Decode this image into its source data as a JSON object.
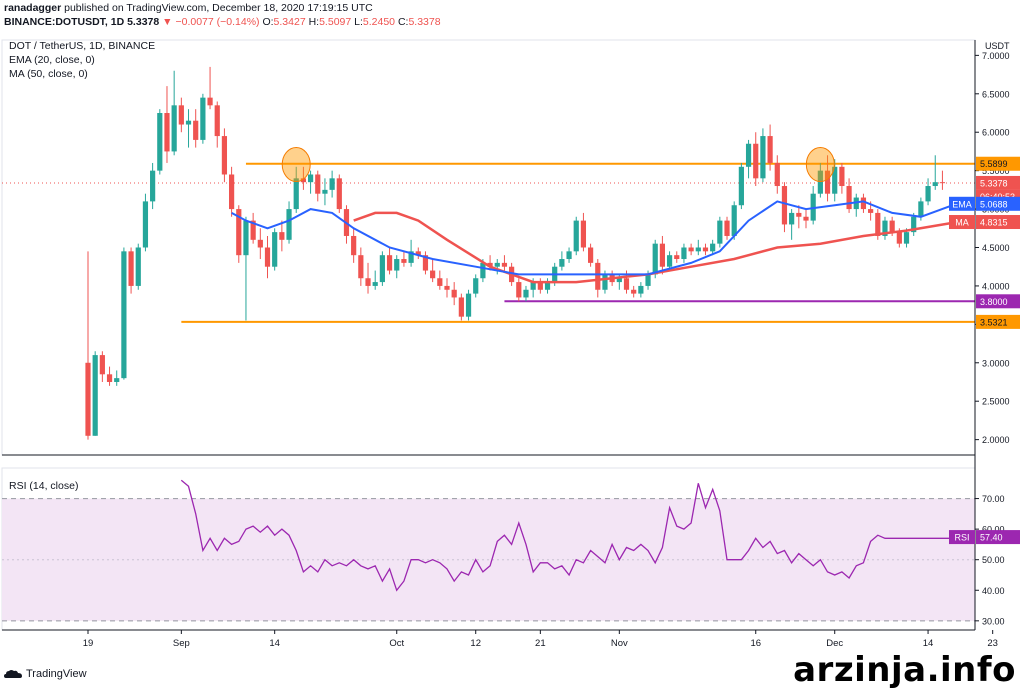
{
  "header": {
    "author": "ranadagger",
    "published_text": "published on TradingView.com, December 18, 2020 17:19:15 UTC",
    "symbol": "BINANCE:DOTUSDT, 1D",
    "price": "5.3378",
    "change_arrow": "▼",
    "change": "−0.0077 (−0.14%)",
    "o_label": "O:",
    "o_value": "5.3427",
    "h_label": "H:",
    "h_value": "5.5097",
    "l_label": "L:",
    "l_value": "5.2450",
    "c_label": "C:",
    "c_value": "5.3378"
  },
  "legend": {
    "title": "DOT / TetherUS, 1D, BINANCE",
    "ema": "EMA (20, close, 0)",
    "ma": "MA (50, close, 0)"
  },
  "rsi_legend": "RSI (14, close)",
  "branding": "TradingView",
  "watermark": "arzinja.info",
  "colors": {
    "up": "#26a69a",
    "down": "#ef5350",
    "ema": "#2962ff",
    "ma": "#ef5350",
    "orange_level": "#ff9800",
    "purple_level": "#9c27b0",
    "rsi_line": "#9c27b0",
    "rsi_band": "#f3e5f5"
  },
  "chart_data": [
    {
      "type": "candlestick",
      "title": "DOT / TetherUS, 1D, BINANCE",
      "currency": "USDT",
      "ylim": [
        1.8,
        7.2
      ],
      "y_ticks": [
        "2.0000",
        "2.5000",
        "3.0000",
        "3.5000",
        "4.0000",
        "4.5000",
        "5.0000",
        "5.5000",
        "6.0000",
        "6.5000",
        "7.0000"
      ],
      "x_ticks": [
        "19",
        "Sep",
        "14",
        "Oct",
        "12",
        "21",
        "Nov",
        "16",
        "Dec",
        "14",
        "23"
      ],
      "x_tick_days": [
        0,
        13,
        26,
        43,
        54,
        63,
        74,
        93,
        104,
        117,
        126
      ],
      "candles_ohlc": [
        [
          3.0,
          4.45,
          2.0,
          2.05
        ],
        [
          2.05,
          3.15,
          2.05,
          3.1
        ],
        [
          3.1,
          3.15,
          2.75,
          2.85
        ],
        [
          2.85,
          2.95,
          2.7,
          2.75
        ],
        [
          2.75,
          2.9,
          2.7,
          2.8
        ],
        [
          2.8,
          4.5,
          2.78,
          4.45
        ],
        [
          4.45,
          4.5,
          3.9,
          4.0
        ],
        [
          4.0,
          4.55,
          3.95,
          4.5
        ],
        [
          4.5,
          5.2,
          4.45,
          5.1
        ],
        [
          5.1,
          5.6,
          5.0,
          5.5
        ],
        [
          5.5,
          6.3,
          5.45,
          6.25
        ],
        [
          6.25,
          6.6,
          5.6,
          5.75
        ],
        [
          5.75,
          6.8,
          5.7,
          6.35
        ],
        [
          6.35,
          6.45,
          6.0,
          6.1
        ],
        [
          6.1,
          6.3,
          5.8,
          6.15
        ],
        [
          6.15,
          6.3,
          5.8,
          5.9
        ],
        [
          5.9,
          6.5,
          5.85,
          6.45
        ],
        [
          6.45,
          6.85,
          6.3,
          6.35
        ],
        [
          6.35,
          6.4,
          5.8,
          5.95
        ],
        [
          5.95,
          6.05,
          5.35,
          5.45
        ],
        [
          5.45,
          5.55,
          4.9,
          5.0
        ],
        [
          5.0,
          5.05,
          4.3,
          4.4
        ],
        [
          4.4,
          4.9,
          3.55,
          4.85
        ],
        [
          4.85,
          4.95,
          4.55,
          4.6
        ],
        [
          4.6,
          4.75,
          4.35,
          4.5
        ],
        [
          4.5,
          4.65,
          4.1,
          4.25
        ],
        [
          4.25,
          4.75,
          4.2,
          4.7
        ],
        [
          4.7,
          4.85,
          4.45,
          4.6
        ],
        [
          4.6,
          5.1,
          4.55,
          5.0
        ],
        [
          5.0,
          5.55,
          4.95,
          5.4
        ],
        [
          5.4,
          5.55,
          5.25,
          5.35
        ],
        [
          5.35,
          5.5,
          5.2,
          5.45
        ],
        [
          5.45,
          5.5,
          5.1,
          5.2
        ],
        [
          5.2,
          5.4,
          5.05,
          5.25
        ],
        [
          5.25,
          5.5,
          5.15,
          5.4
        ],
        [
          5.4,
          5.45,
          4.95,
          5.0
        ],
        [
          5.0,
          5.05,
          4.55,
          4.65
        ],
        [
          4.65,
          4.75,
          4.3,
          4.4
        ],
        [
          4.4,
          4.5,
          4.0,
          4.1
        ],
        [
          4.1,
          4.3,
          3.9,
          4.0
        ],
        [
          4.0,
          4.2,
          3.95,
          4.05
        ],
        [
          4.05,
          4.45,
          4.0,
          4.4
        ],
        [
          4.4,
          4.5,
          4.15,
          4.2
        ],
        [
          4.2,
          4.4,
          4.1,
          4.35
        ],
        [
          4.35,
          4.45,
          4.25,
          4.3
        ],
        [
          4.3,
          4.6,
          4.25,
          4.45
        ],
        [
          4.45,
          4.5,
          4.35,
          4.4
        ],
        [
          4.4,
          4.45,
          4.15,
          4.2
        ],
        [
          4.2,
          4.35,
          4.05,
          4.1
        ],
        [
          4.1,
          4.2,
          3.95,
          4.0
        ],
        [
          4.0,
          4.1,
          3.85,
          3.95
        ],
        [
          3.95,
          4.05,
          3.75,
          3.85
        ],
        [
          3.85,
          3.9,
          3.55,
          3.6
        ],
        [
          3.6,
          3.95,
          3.55,
          3.9
        ],
        [
          3.9,
          4.15,
          3.85,
          4.1
        ],
        [
          4.1,
          4.35,
          4.05,
          4.3
        ],
        [
          4.3,
          4.4,
          4.2,
          4.25
        ],
        [
          4.25,
          4.35,
          4.15,
          4.3
        ],
        [
          4.3,
          4.4,
          4.2,
          4.25
        ],
        [
          4.25,
          4.3,
          4.0,
          4.05
        ],
        [
          4.05,
          4.1,
          3.8,
          3.85
        ],
        [
          3.85,
          4.0,
          3.8,
          3.95
        ],
        [
          3.95,
          4.1,
          3.85,
          4.05
        ],
        [
          4.05,
          4.1,
          3.9,
          3.95
        ],
        [
          3.95,
          4.1,
          3.9,
          4.05
        ],
        [
          4.05,
          4.3,
          4.0,
          4.25
        ],
        [
          4.25,
          4.45,
          4.2,
          4.35
        ],
        [
          4.35,
          4.5,
          4.3,
          4.45
        ],
        [
          4.45,
          4.9,
          4.4,
          4.85
        ],
        [
          4.85,
          4.95,
          4.45,
          4.5
        ],
        [
          4.5,
          4.55,
          4.25,
          4.3
        ],
        [
          4.3,
          4.35,
          3.85,
          3.95
        ],
        [
          3.95,
          4.2,
          3.9,
          4.15
        ],
        [
          4.15,
          4.2,
          4.0,
          4.05
        ],
        [
          4.05,
          4.15,
          3.95,
          4.1
        ],
        [
          4.1,
          4.2,
          3.9,
          3.95
        ],
        [
          3.95,
          4.0,
          3.85,
          3.9
        ],
        [
          3.9,
          4.05,
          3.85,
          4.0
        ],
        [
          4.0,
          4.2,
          3.95,
          4.15
        ],
        [
          4.15,
          4.6,
          4.1,
          4.55
        ],
        [
          4.55,
          4.65,
          4.15,
          4.25
        ],
        [
          4.25,
          4.45,
          4.2,
          4.4
        ],
        [
          4.4,
          4.45,
          4.3,
          4.35
        ],
        [
          4.35,
          4.55,
          4.3,
          4.5
        ],
        [
          4.5,
          4.55,
          4.4,
          4.45
        ],
        [
          4.45,
          4.6,
          4.4,
          4.5
        ],
        [
          4.5,
          4.55,
          4.4,
          4.45
        ],
        [
          4.45,
          4.6,
          4.4,
          4.55
        ],
        [
          4.55,
          4.9,
          4.5,
          4.85
        ],
        [
          4.85,
          4.9,
          4.6,
          4.65
        ],
        [
          4.65,
          5.1,
          4.6,
          5.05
        ],
        [
          5.05,
          5.6,
          5.0,
          5.55
        ],
        [
          5.55,
          5.9,
          5.4,
          5.85
        ],
        [
          5.85,
          6.0,
          5.3,
          5.4
        ],
        [
          5.4,
          6.05,
          5.35,
          5.95
        ],
        [
          5.95,
          6.1,
          5.5,
          5.6
        ],
        [
          5.6,
          5.7,
          5.2,
          5.3
        ],
        [
          5.3,
          5.35,
          4.7,
          4.8
        ],
        [
          4.8,
          5.0,
          4.6,
          4.95
        ],
        [
          4.95,
          5.05,
          4.75,
          4.9
        ],
        [
          4.9,
          5.0,
          4.75,
          4.85
        ],
        [
          4.85,
          5.3,
          4.8,
          5.2
        ],
        [
          5.2,
          5.6,
          5.15,
          5.5
        ],
        [
          5.5,
          5.7,
          5.1,
          5.2
        ],
        [
          5.2,
          5.65,
          5.1,
          5.55
        ],
        [
          5.55,
          5.6,
          5.2,
          5.3
        ],
        [
          5.3,
          5.4,
          4.95,
          5.0
        ],
        [
          5.0,
          5.2,
          4.9,
          5.15
        ],
        [
          5.15,
          5.2,
          4.95,
          5.0
        ],
        [
          5.0,
          5.1,
          4.85,
          4.95
        ],
        [
          4.95,
          5.0,
          4.6,
          4.65
        ],
        [
          4.65,
          4.9,
          4.6,
          4.85
        ],
        [
          4.85,
          4.9,
          4.65,
          4.7
        ],
        [
          4.7,
          4.75,
          4.5,
          4.55
        ],
        [
          4.55,
          4.75,
          4.5,
          4.7
        ],
        [
          4.7,
          4.95,
          4.65,
          4.9
        ],
        [
          4.9,
          5.15,
          4.85,
          5.1
        ],
        [
          5.1,
          5.4,
          5.05,
          5.3
        ],
        [
          5.3,
          5.7,
          5.25,
          5.35
        ],
        [
          5.35,
          5.5,
          5.25,
          5.34
        ]
      ],
      "ema_20": [
        [
          20,
          4.95
        ],
        [
          22,
          4.85
        ],
        [
          25,
          4.75
        ],
        [
          28,
          4.85
        ],
        [
          31,
          5.0
        ],
        [
          34,
          4.95
        ],
        [
          37,
          4.75
        ],
        [
          42,
          4.5
        ],
        [
          48,
          4.35
        ],
        [
          54,
          4.25
        ],
        [
          60,
          4.15
        ],
        [
          66,
          4.15
        ],
        [
          72,
          4.15
        ],
        [
          78,
          4.15
        ],
        [
          84,
          4.3
        ],
        [
          88,
          4.45
        ],
        [
          92,
          4.85
        ],
        [
          96,
          5.1
        ],
        [
          100,
          5.0
        ],
        [
          104,
          5.05
        ],
        [
          108,
          5.1
        ],
        [
          112,
          4.95
        ],
        [
          116,
          4.9
        ],
        [
          121,
          5.07
        ]
      ],
      "ma_50": [
        [
          37,
          4.85
        ],
        [
          40,
          4.95
        ],
        [
          43,
          4.95
        ],
        [
          46,
          4.85
        ],
        [
          50,
          4.6
        ],
        [
          56,
          4.25
        ],
        [
          62,
          4.05
        ],
        [
          68,
          4.05
        ],
        [
          73,
          4.1
        ],
        [
          78,
          4.15
        ],
        [
          84,
          4.25
        ],
        [
          90,
          4.35
        ],
        [
          96,
          4.5
        ],
        [
          102,
          4.55
        ],
        [
          108,
          4.65
        ],
        [
          114,
          4.72
        ],
        [
          121,
          4.83
        ]
      ],
      "horizontal_levels": [
        {
          "value": 5.5899,
          "label": "5.5899",
          "color": "#ff9800",
          "from_day": 22,
          "to_day": 128
        },
        {
          "value": 3.8,
          "label": "3.8000",
          "color": "#9c27b0",
          "from_day": 58,
          "to_day": 128
        },
        {
          "value": 3.5321,
          "label": "3.5321",
          "color": "#ff9800",
          "from_day": 13,
          "to_day": 128
        }
      ],
      "highlight_circles": [
        {
          "day": 29,
          "value": 5.58
        },
        {
          "day": 102,
          "value": 5.58
        }
      ],
      "price_labels": {
        "close": "5.3378",
        "countdown": "06:40:53",
        "ema_name": "EMA",
        "ema_value": "5.0688",
        "ma_name": "MA",
        "ma_value": "4.8315"
      }
    },
    {
      "type": "line",
      "title": "RSI (14, close)",
      "ylim": [
        27,
        80
      ],
      "y_ticks": [
        "30.00",
        "40.00",
        "50.00",
        "60.00",
        "70.00"
      ],
      "overbought": 70,
      "oversold": 30,
      "days": [
        13,
        14,
        15,
        16,
        17,
        18,
        19,
        20,
        21,
        22,
        23,
        24,
        25,
        26,
        27,
        28,
        29,
        30,
        31,
        32,
        33,
        34,
        35,
        36,
        37,
        38,
        39,
        40,
        41,
        42,
        43,
        44,
        45,
        46,
        47,
        48,
        49,
        50,
        51,
        52,
        53,
        54,
        55,
        56,
        57,
        58,
        59,
        60,
        61,
        62,
        63,
        64,
        65,
        66,
        67,
        68,
        69,
        70,
        71,
        72,
        73,
        74,
        75,
        76,
        77,
        78,
        79,
        80,
        81,
        82,
        83,
        84,
        85,
        86,
        87,
        88,
        89,
        90,
        91,
        92,
        93,
        94,
        95,
        96,
        97,
        98,
        99,
        100,
        101,
        102,
        103,
        104,
        105,
        106,
        107,
        108,
        109,
        110,
        111,
        112,
        113,
        114,
        115,
        116,
        117,
        118,
        119,
        120,
        121
      ],
      "values": [
        76,
        74,
        65,
        53,
        57,
        53,
        57,
        55,
        56,
        60,
        61,
        59,
        61,
        58,
        60,
        58,
        53,
        46,
        48,
        46,
        50,
        48,
        49,
        48,
        50,
        48,
        47,
        48,
        43,
        47,
        40,
        43,
        50,
        50,
        49,
        50,
        49,
        47,
        43,
        46,
        45,
        50,
        46,
        48,
        56,
        58,
        55,
        62,
        55,
        46,
        49,
        49,
        47,
        48,
        45,
        50,
        49,
        53,
        51,
        49,
        55,
        50,
        54,
        53,
        55,
        53,
        49,
        54,
        67,
        61,
        60,
        62,
        75,
        67,
        73,
        66,
        50,
        50,
        50,
        53,
        57,
        54,
        56,
        52,
        53,
        49,
        52,
        50,
        48,
        50,
        46,
        45,
        46,
        44,
        48,
        49,
        56,
        58,
        57,
        57,
        57,
        57,
        57,
        57,
        57,
        57,
        57,
        57,
        57
      ],
      "current_label": "RSI",
      "current_value": "57.40"
    }
  ]
}
